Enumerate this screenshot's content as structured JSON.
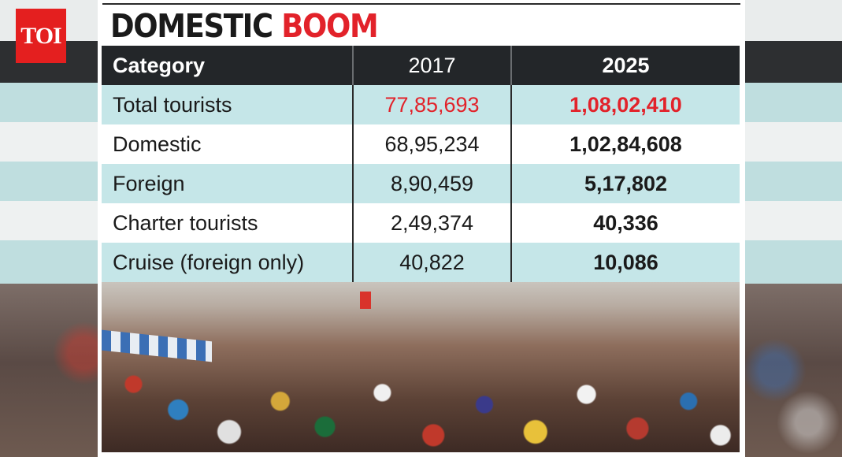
{
  "logo": {
    "text": "TOI"
  },
  "headline": {
    "part1": "DOMESTIC",
    "part2": "BOOM"
  },
  "table": {
    "headers": [
      "Category",
      "2017",
      "2025"
    ],
    "rows": [
      {
        "category": "Total tourists",
        "y2017": "77,85,693",
        "y2025": "1,08,02,410"
      },
      {
        "category": "Domestic",
        "y2017": "68,95,234",
        "y2025": "1,02,84,608"
      },
      {
        "category": "Foreign",
        "y2017": "8,90,459",
        "y2025": "5,17,802"
      },
      {
        "category": "Charter tourists",
        "y2017": "2,49,374",
        "y2025": "40,336"
      },
      {
        "category": "Cruise (foreign only)",
        "y2017": "40,822",
        "y2025": "10,086"
      }
    ]
  },
  "colors": {
    "accent_red": "#e2222a",
    "header_bg": "#232629",
    "row_tint": "#c5e6e8"
  },
  "photo": {
    "icon": "beach-crowd-photo"
  }
}
